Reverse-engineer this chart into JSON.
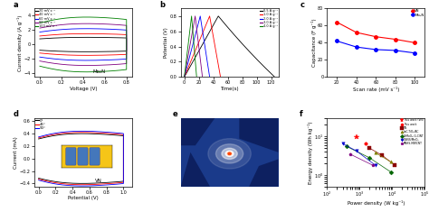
{
  "panel_a": {
    "label": "a",
    "xlabel": "Voltage (V)",
    "ylabel": "Current density (A g⁻¹)",
    "annotation": "Mo₂N",
    "colors": [
      "black",
      "red",
      "blue",
      "purple",
      "green"
    ],
    "legend_labels": [
      "20 mV s⁻¹",
      "40 mV s⁻¹",
      "60 mV s⁻¹",
      "80 mV s⁻¹",
      "100 mV s⁻¹"
    ],
    "scales": [
      1.0,
      1.5,
      2.2,
      2.9,
      3.8
    ],
    "xlim": [
      -0.05,
      0.85
    ],
    "ylim": [
      -4.5,
      5.0
    ],
    "xticks": [
      0.0,
      0.2,
      0.4,
      0.6,
      0.8
    ]
  },
  "panel_b": {
    "label": "b",
    "xlabel": "Time(s)",
    "ylabel": "Potential (V)",
    "legend_labels": [
      "0.5 A g⁻¹",
      "1.0 A g⁻¹",
      "2.0 A g⁻¹",
      "3.0 A g⁻¹",
      "4.0 A g⁻¹"
    ],
    "colors": [
      "black",
      "red",
      "blue",
      "purple",
      "green"
    ],
    "charge_times": [
      47,
      35,
      22,
      15,
      10
    ],
    "discharge_times": [
      125,
      50,
      35,
      25,
      17
    ],
    "xlim": [
      -5,
      130
    ],
    "ylim": [
      0.0,
      0.9
    ],
    "yticks": [
      0.0,
      0.2,
      0.4,
      0.6,
      0.8
    ]
  },
  "panel_c": {
    "label": "c",
    "xlabel": "Scan rate (mV s⁻¹)",
    "ylabel": "Capacitance (F g⁻¹)",
    "scan_rates": [
      20,
      40,
      60,
      80,
      100
    ],
    "VN_values": [
      64,
      52,
      47,
      44,
      40
    ],
    "Mo2N_values": [
      42,
      35,
      32,
      31,
      28
    ],
    "VN_color": "red",
    "Mo2N_color": "blue",
    "xlim": [
      10,
      110
    ],
    "ylim": [
      0,
      80
    ],
    "yticks": [
      0,
      20,
      40,
      60,
      80
    ]
  },
  "panel_d": {
    "label": "d",
    "xlabel": "Potential (V)",
    "ylabel": "Current (mA)",
    "annotation": "VN",
    "angles": [
      "0°",
      "45°",
      "90°"
    ],
    "colors": [
      "black",
      "red",
      "blue"
    ],
    "scales": [
      0.4,
      0.42,
      0.44
    ],
    "xlim": [
      -0.05,
      1.1
    ],
    "ylim": [
      -0.45,
      0.65
    ],
    "xticks": [
      0.0,
      0.2,
      0.4,
      0.6,
      0.8,
      1.0
    ]
  },
  "panel_e": {
    "label": "e",
    "bg_color": "#2244aa",
    "fabric_color": "#1a3a8a",
    "led_color": "#ff6644"
  },
  "panel_f": {
    "label": "f",
    "xlabel": "Power density (W kg⁻¹)",
    "ylabel": "Energy density (Wh kg⁻¹)",
    "series_labels": [
      "This work (VN)",
      "This work",
      "VN",
      "LaC-TiO₂/AC",
      "GrMoO₃-G-CINT",
      "GNNS/MnO₂",
      "PNHS-MWCNT"
    ],
    "series_colors": [
      "red",
      "red",
      "#8B0000",
      "#808000",
      "#006400",
      "#0000CD",
      "#800080"
    ],
    "series_markers": [
      "*",
      "o",
      "s",
      "^",
      "D",
      "v",
      "p"
    ],
    "series_x": [
      [
        800
      ],
      [
        1500
      ],
      [
        2000,
        5000,
        12000
      ],
      [
        3000,
        9000
      ],
      [
        400,
        2000,
        9000
      ],
      [
        300,
        800,
        3000
      ],
      [
        500,
        2500
      ]
    ],
    "series_y": [
      [
        9.5
      ],
      [
        6.5
      ],
      [
        5,
        3.2,
        1.8
      ],
      [
        3.8,
        2.2
      ],
      [
        5.5,
        2.8,
        1.2
      ],
      [
        6.5,
        4.2,
        1.8
      ],
      [
        3.5,
        1.8
      ]
    ],
    "xlim_log": [
      100,
      100000
    ],
    "ylim_log": [
      0.5,
      30
    ]
  }
}
